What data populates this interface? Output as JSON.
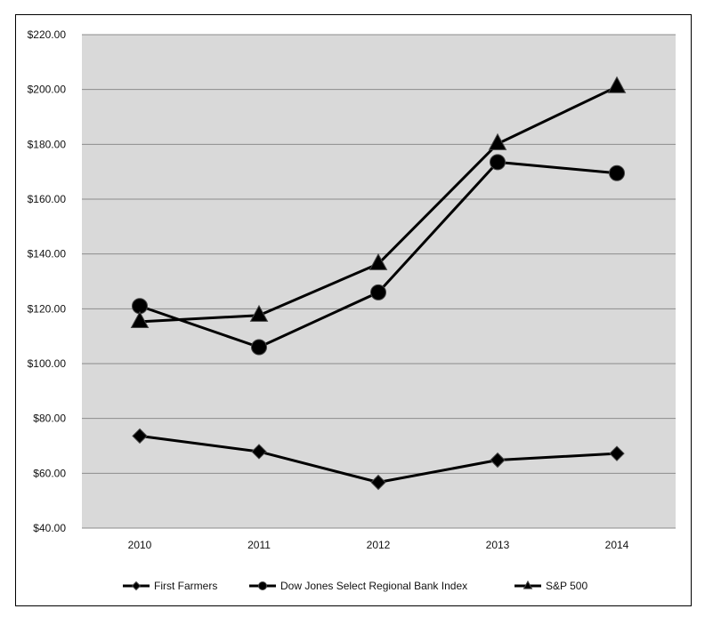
{
  "chart_data": {
    "type": "line",
    "title": "",
    "xlabel": "",
    "ylabel": "",
    "categories": [
      "2010",
      "2011",
      "2012",
      "2013",
      "2014"
    ],
    "ylim": [
      40,
      220
    ],
    "yticks": [
      40,
      60,
      80,
      100,
      120,
      140,
      160,
      180,
      200,
      220
    ],
    "ytick_labels": [
      "$40.00",
      "$60.00",
      "$80.00",
      "$100.00",
      "$120.00",
      "$140.00",
      "$160.00",
      "$180.00",
      "$200.00",
      "$220.00"
    ],
    "grid": true,
    "plot_background": "#d9d9d9",
    "line_color": "#000000",
    "legend_position": "bottom",
    "series": [
      {
        "name": "First Farmers",
        "marker": "diamond",
        "values": [
          73.6,
          67.9,
          56.7,
          64.8,
          67.2
        ]
      },
      {
        "name": "Dow Jones Select Regional Bank Index",
        "marker": "circle",
        "values": [
          121.0,
          106.0,
          126.0,
          173.5,
          169.5
        ]
      },
      {
        "name": "S&P 500",
        "marker": "triangle",
        "values": [
          115.3,
          117.6,
          136.4,
          180.2,
          201.0
        ]
      }
    ]
  }
}
